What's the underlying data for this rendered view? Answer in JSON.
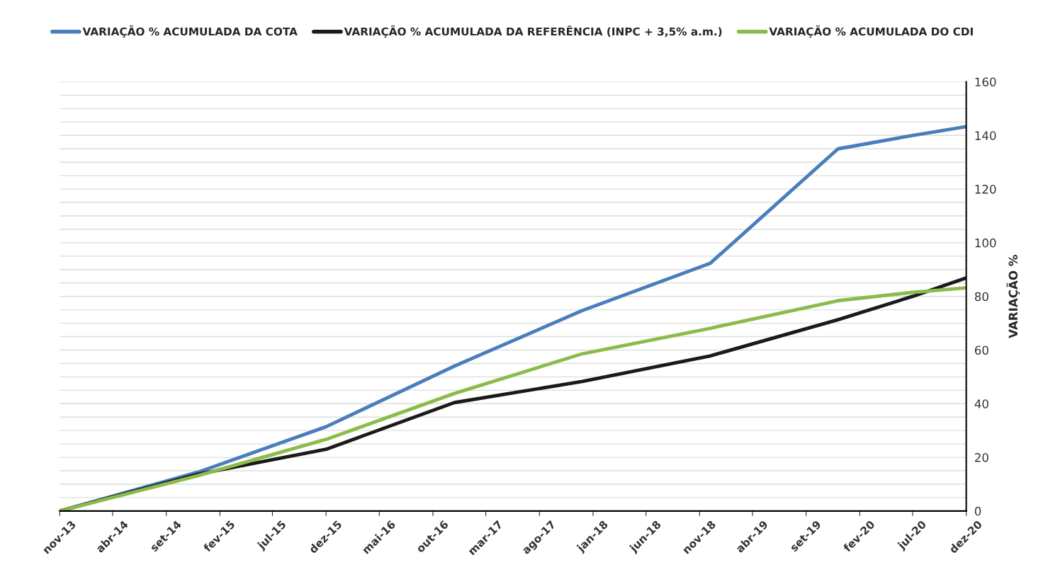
{
  "chart_data": {
    "type": "line",
    "ylabel": "VARIAÇÃO %",
    "x": [
      "2013-11",
      "2014-12",
      "2015-12",
      "2016-12",
      "2017-12",
      "2018-12",
      "2019-12",
      "2020-07",
      "2020-12"
    ],
    "series": [
      {
        "name": "VARIAÇÃO % ACUMULADA DA COTA",
        "color": "#4a7ebb",
        "values": [
          0,
          14.5,
          31.4,
          54,
          74.7,
          92.3,
          135,
          140,
          143.3
        ]
      },
      {
        "name": "VARIAÇÃO % ACUMULADA DA REFERÊNCIA (INPC + 3,5% a.m.)",
        "color": "#1a1a1a",
        "values": [
          0,
          13.7,
          23,
          40.4,
          48.3,
          57.8,
          71.3,
          80,
          86.9
        ]
      },
      {
        "name": "VARIAÇÃO % ACUMULADA DO CDI",
        "color": "#8cbb4a",
        "values": [
          0,
          13.2,
          26.7,
          43.8,
          58.6,
          68.1,
          78.4,
          81.5,
          83.2
        ]
      }
    ],
    "xlim": [
      "2013-11",
      "2020-12"
    ],
    "xticks": [
      {
        "value": "2013-11",
        "label": "nov-13"
      },
      {
        "value": "2014-04",
        "label": "abr-14"
      },
      {
        "value": "2014-09",
        "label": "set-14"
      },
      {
        "value": "2015-02",
        "label": "fev-15"
      },
      {
        "value": "2015-07",
        "label": "jul-15"
      },
      {
        "value": "2015-12",
        "label": "dez-15"
      },
      {
        "value": "2016-05",
        "label": "mai-16"
      },
      {
        "value": "2016-10",
        "label": "out-16"
      },
      {
        "value": "2017-03",
        "label": "mar-17"
      },
      {
        "value": "2017-08",
        "label": "ago-17"
      },
      {
        "value": "2018-01",
        "label": "jan-18"
      },
      {
        "value": "2018-06",
        "label": "jun-18"
      },
      {
        "value": "2018-11",
        "label": "nov-18"
      },
      {
        "value": "2019-04",
        "label": "abr-19"
      },
      {
        "value": "2019-09",
        "label": "set-19"
      },
      {
        "value": "2020-02",
        "label": "fev-20"
      },
      {
        "value": "2020-07",
        "label": "jul-20"
      },
      {
        "value": "2020-12",
        "label": "dez-20"
      }
    ],
    "ylim": [
      0,
      160
    ],
    "yticks": [
      0,
      {
        "value": 5,
        "label": null
      },
      {
        "value": 10,
        "label": null
      },
      {
        "value": 15,
        "label": null
      },
      20,
      {
        "value": 25,
        "label": null
      },
      {
        "value": 30,
        "label": null
      },
      {
        "value": 35,
        "label": null
      },
      40,
      {
        "value": 45,
        "label": null
      },
      {
        "value": 50,
        "label": null
      },
      {
        "value": 55,
        "label": null
      },
      60,
      {
        "value": 65,
        "label": null
      },
      {
        "value": 70,
        "label": null
      },
      {
        "value": 75,
        "label": null
      },
      80,
      {
        "value": 85,
        "label": null
      },
      {
        "value": 90,
        "label": null
      },
      {
        "value": 95,
        "label": null
      },
      100,
      {
        "value": 105,
        "label": null
      },
      {
        "value": 110,
        "label": null
      },
      {
        "value": 115,
        "label": null
      },
      120,
      {
        "value": 125,
        "label": null
      },
      {
        "value": 130,
        "label": null
      },
      {
        "value": 135,
        "label": null
      },
      140,
      {
        "value": 145,
        "label": null
      },
      {
        "value": 150,
        "label": null
      },
      {
        "value": 155,
        "label": null
      },
      160
    ],
    "grid": "y",
    "legend": "top",
    "marker": "none",
    "line_style": "solid"
  }
}
